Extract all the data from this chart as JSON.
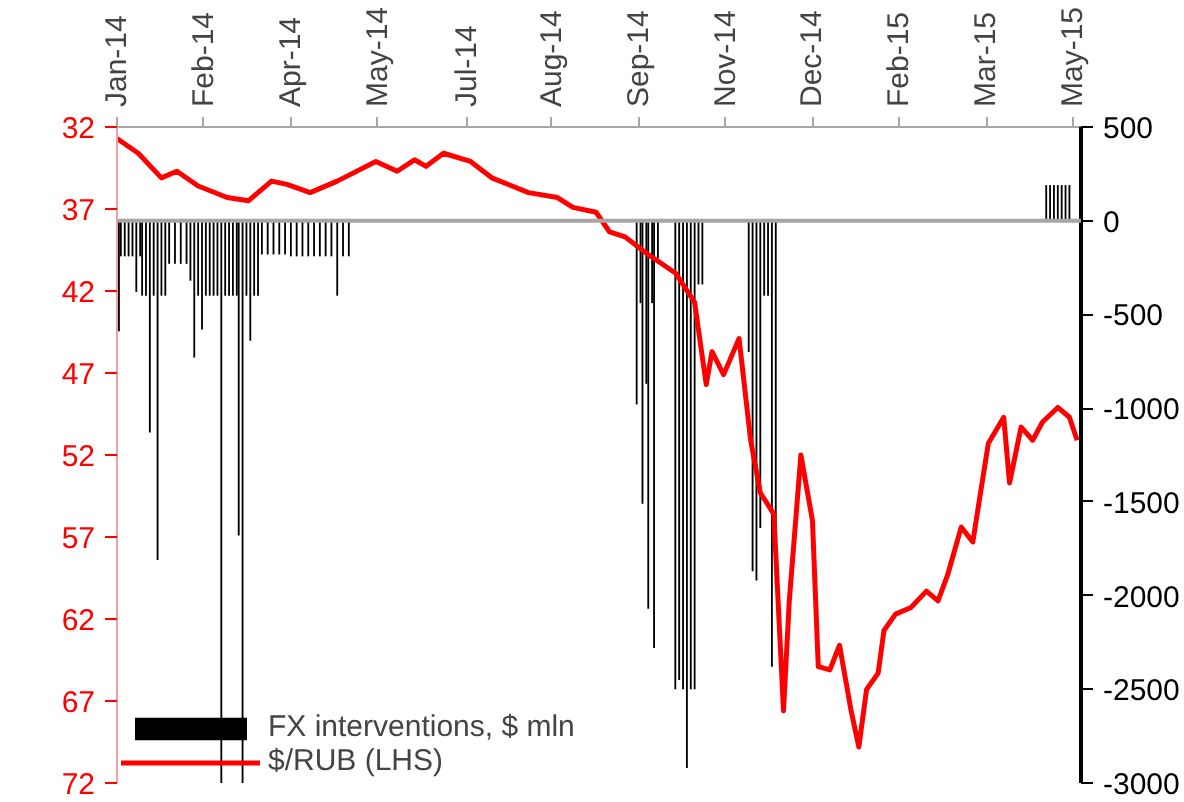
{
  "chart_data": {
    "type": "bar",
    "series": [
      {
        "name": "FX interventions, $ mln",
        "axis": "y2",
        "color": "#000000",
        "x": [
          "2014-01-02",
          "2014-01-03",
          "2014-01-05",
          "2014-01-07",
          "2014-01-09",
          "2014-01-11",
          "2014-01-13",
          "2014-01-14",
          "2014-01-16",
          "2014-01-18",
          "2014-01-20",
          "2014-01-22",
          "2014-01-24",
          "2014-01-26",
          "2014-01-28",
          "2014-01-31",
          "2014-02-03",
          "2014-02-06",
          "2014-02-08",
          "2014-02-10",
          "2014-02-12",
          "2014-02-14",
          "2014-02-16",
          "2014-02-18",
          "2014-02-20",
          "2014-02-22",
          "2014-02-24",
          "2014-02-26",
          "2014-02-28",
          "2014-03-02",
          "2014-03-04",
          "2014-03-05",
          "2014-03-07",
          "2014-03-09",
          "2014-03-11",
          "2014-03-13",
          "2014-03-15",
          "2014-03-17",
          "2014-03-20",
          "2014-03-23",
          "2014-03-26",
          "2014-03-29",
          "2014-04-01",
          "2014-04-04",
          "2014-04-07",
          "2014-04-10",
          "2014-04-13",
          "2014-04-16",
          "2014-04-19",
          "2014-04-22",
          "2014-04-25",
          "2014-04-28",
          "2014-05-01",
          "2014-09-27",
          "2014-09-29",
          "2014-09-30",
          "2014-10-02",
          "2014-10-03",
          "2014-10-05",
          "2014-10-06",
          "2014-10-08",
          "2014-10-17",
          "2014-10-19",
          "2014-10-21",
          "2014-10-23",
          "2014-10-25",
          "2014-10-27",
          "2014-10-29",
          "2014-10-31",
          "2014-11-24",
          "2014-11-26",
          "2014-11-28",
          "2014-11-30",
          "2014-12-02",
          "2014-12-04",
          "2014-12-06",
          "2014-12-08",
          "2015-04-27",
          "2015-04-29",
          "2015-05-01",
          "2015-05-03",
          "2015-05-05",
          "2015-05-07",
          "2015-05-09"
        ],
        "values": [
          -590,
          -190,
          -190,
          -190,
          -190,
          -380,
          -190,
          -400,
          -400,
          -1130,
          -400,
          -1810,
          -400,
          -400,
          -230,
          -230,
          -230,
          -230,
          -320,
          -730,
          -400,
          -580,
          -400,
          -400,
          -400,
          -400,
          -3000,
          -400,
          -400,
          -400,
          -400,
          -1680,
          -3000,
          -400,
          -640,
          -400,
          -400,
          -180,
          -180,
          -180,
          -180,
          -180,
          -190,
          -190,
          -190,
          -190,
          -190,
          -190,
          -190,
          -190,
          -400,
          -190,
          -190,
          -980,
          -440,
          -1510,
          -870,
          -2070,
          -440,
          -2280,
          -200,
          -2500,
          -2450,
          -2500,
          -2920,
          -2500,
          -2500,
          -340,
          -340,
          -700,
          -1870,
          -1920,
          -1640,
          -400,
          -400,
          -2380,
          -1950,
          190,
          190,
          190,
          190,
          190,
          190,
          190
        ]
      },
      {
        "name": "$/RUB (LHS)",
        "type": "line",
        "color": "#ff0000",
        "x": [
          "2014-01-01",
          "2014-01-12",
          "2014-01-24",
          "2014-02-01",
          "2014-02-12",
          "2014-02-27",
          "2014-03-10",
          "2014-03-22",
          "2014-03-30",
          "2014-04-11",
          "2014-04-25",
          "2014-05-15",
          "2014-05-26",
          "2014-06-04",
          "2014-06-10",
          "2014-06-19",
          "2014-07-03",
          "2014-07-14",
          "2014-08-02",
          "2014-08-17",
          "2014-08-25",
          "2014-09-06",
          "2014-09-13",
          "2014-09-21",
          "2014-10-02",
          "2014-10-17",
          "2014-10-27",
          "2014-11-02",
          "2014-11-05",
          "2014-11-11",
          "2014-11-19",
          "2014-11-25",
          "2014-11-30",
          "2014-12-07",
          "2014-12-12",
          "2014-12-15",
          "2014-12-21",
          "2014-12-27",
          "2014-12-30",
          "2015-01-05",
          "2015-01-10",
          "2015-01-16",
          "2015-01-20",
          "2015-01-24",
          "2015-01-30",
          "2015-02-02",
          "2015-02-08",
          "2015-02-16",
          "2015-02-24",
          "2015-03-02",
          "2015-03-07",
          "2015-03-14",
          "2015-03-20",
          "2015-03-28",
          "2015-04-05",
          "2015-04-08",
          "2015-04-14",
          "2015-04-20",
          "2015-04-25",
          "2015-05-03",
          "2015-05-09",
          "2015-05-13"
        ],
        "values": [
          32.7,
          33.6,
          35.1,
          34.7,
          35.6,
          36.3,
          36.5,
          35.3,
          35.5,
          36.0,
          35.3,
          34.1,
          34.7,
          34.0,
          34.4,
          33.6,
          34.1,
          35.1,
          36.0,
          36.3,
          36.9,
          37.2,
          38.4,
          38.7,
          39.7,
          40.9,
          42.7,
          47.7,
          45.7,
          47.1,
          44.9,
          51.1,
          54.3,
          55.6,
          67.6,
          60.9,
          52.0,
          56.0,
          64.9,
          65.1,
          63.6,
          67.6,
          69.8,
          66.3,
          65.3,
          62.7,
          61.7,
          61.3,
          60.3,
          60.9,
          59.3,
          56.4,
          57.3,
          51.3,
          49.7,
          53.7,
          50.3,
          51.1,
          50.0,
          49.1,
          49.7,
          51.1
        ]
      }
    ],
    "xlim": [
      "2014-01-01",
      "2015-05-15"
    ],
    "xticks": [
      {
        "value": "2014-01-01",
        "label": "Jan-14"
      },
      {
        "value": "2014-02-15",
        "label": "Feb-14"
      },
      {
        "value": "2014-04-01",
        "label": "Apr-14"
      },
      {
        "value": "2014-05-16",
        "label": "May-14"
      },
      {
        "value": "2014-07-01",
        "label": "Jul-14"
      },
      {
        "value": "2014-08-14",
        "label": "Aug-14"
      },
      {
        "value": "2014-09-28",
        "label": "Sep-14"
      },
      {
        "value": "2014-11-12",
        "label": "Nov-14"
      },
      {
        "value": "2014-12-27",
        "label": "Dec-14"
      },
      {
        "value": "2015-02-10",
        "label": "Feb-15"
      },
      {
        "value": "2015-03-27",
        "label": "Mar-15"
      },
      {
        "value": "2015-05-11",
        "label": "May-15"
      }
    ],
    "ylim": [
      72,
      32
    ],
    "yticks": [
      32,
      37,
      42,
      47,
      52,
      57,
      62,
      67,
      72
    ],
    "y2lim": [
      -3000,
      500
    ],
    "y2ticks": [
      500,
      0,
      -500,
      -1000,
      -1500,
      -2000,
      -2500,
      -3000
    ],
    "ref_lines": [
      {
        "axis": "y2",
        "value": 0,
        "color": "#a6a6a6"
      }
    ],
    "legend": "bottom left",
    "grid": false
  }
}
